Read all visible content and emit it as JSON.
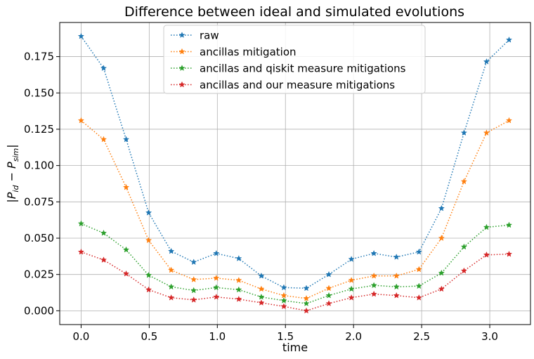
{
  "chart_data": {
    "type": "line",
    "title": "Difference between ideal and simulated evolutions",
    "xlabel": "time",
    "ylabel_parts": {
      "open": "|P",
      "sub1": "id",
      "mid": " − P",
      "sub2": "sim",
      "close": "|"
    },
    "xlim": [
      -0.157,
      3.299
    ],
    "ylim": [
      -0.0095,
      0.1985
    ],
    "xticks": [
      0.0,
      0.5,
      1.0,
      1.5,
      2.0,
      2.5,
      3.0
    ],
    "xtick_labels": [
      "0.0",
      "0.5",
      "1.0",
      "1.5",
      "2.0",
      "2.5",
      "3.0"
    ],
    "yticks": [
      0.0,
      0.025,
      0.05,
      0.075,
      0.1,
      0.125,
      0.15,
      0.175
    ],
    "ytick_labels": [
      "0.000",
      "0.025",
      "0.050",
      "0.075",
      "0.100",
      "0.125",
      "0.150",
      "0.175"
    ],
    "grid": true,
    "legend_position": "upper-center",
    "x": [
      0.0,
      0.1653,
      0.3307,
      0.496,
      0.6614,
      0.8267,
      0.9921,
      1.1574,
      1.3228,
      1.4881,
      1.6535,
      1.8188,
      1.9842,
      2.1495,
      2.3149,
      2.4802,
      2.6456,
      2.8109,
      2.9762,
      3.1416
    ],
    "series": [
      {
        "name": "raw",
        "color": "#1f77b4",
        "values": [
          0.189,
          0.167,
          0.118,
          0.0675,
          0.041,
          0.0335,
          0.0395,
          0.036,
          0.024,
          0.016,
          0.0155,
          0.025,
          0.0355,
          0.0395,
          0.037,
          0.0405,
          0.0705,
          0.1225,
          0.1715,
          0.1865
        ]
      },
      {
        "name": "ancillas mitigation",
        "color": "#ff7f0e",
        "values": [
          0.131,
          0.118,
          0.085,
          0.0485,
          0.028,
          0.0215,
          0.0225,
          0.021,
          0.015,
          0.0105,
          0.0085,
          0.0155,
          0.021,
          0.024,
          0.024,
          0.0285,
          0.05,
          0.089,
          0.1225,
          0.131
        ]
      },
      {
        "name": "ancillas and qiskit measure mitigations",
        "color": "#2ca02c",
        "values": [
          0.06,
          0.0535,
          0.042,
          0.0245,
          0.0165,
          0.014,
          0.016,
          0.0145,
          0.0095,
          0.007,
          0.005,
          0.0105,
          0.015,
          0.0175,
          0.0165,
          0.017,
          0.026,
          0.044,
          0.0575,
          0.059
        ]
      },
      {
        "name": "ancillas and our measure mitigations",
        "color": "#d62728",
        "values": [
          0.0405,
          0.035,
          0.0255,
          0.0145,
          0.009,
          0.0075,
          0.0095,
          0.008,
          0.0055,
          0.003,
          0.0,
          0.005,
          0.009,
          0.0115,
          0.0105,
          0.009,
          0.015,
          0.0275,
          0.0385,
          0.039
        ]
      }
    ]
  }
}
